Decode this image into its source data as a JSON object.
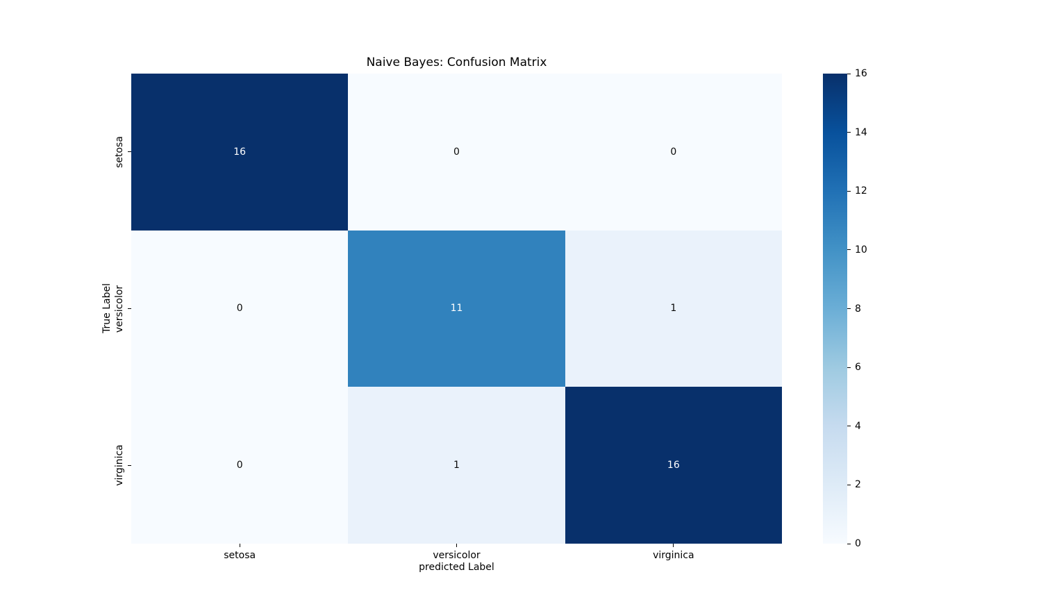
{
  "figure": {
    "background": "#ffffff"
  },
  "chart_data": {
    "type": "heatmap",
    "title": "Naive Bayes: Confusion Matrix",
    "xlabel": "predicted Label",
    "ylabel": "True Label",
    "x_categories": [
      "setosa",
      "versicolor",
      "virginica"
    ],
    "y_categories": [
      "setosa",
      "versicolor",
      "virginica"
    ],
    "matrix": [
      [
        16,
        0,
        0
      ],
      [
        0,
        11,
        1
      ],
      [
        0,
        1,
        16
      ]
    ],
    "vmin": 0,
    "vmax": 16,
    "colormap": "Blues",
    "grid": false,
    "legend_position": "right-colorbar",
    "colorbar_ticks": [
      0,
      2,
      4,
      6,
      8,
      10,
      12,
      14,
      16
    ],
    "cell_colors": [
      [
        "#08306b",
        "#f7fbff",
        "#f7fbff"
      ],
      [
        "#f7fbff",
        "#3182bd",
        "#eaf2fb"
      ],
      [
        "#f7fbff",
        "#eaf2fb",
        "#08306b"
      ]
    ],
    "cell_text_colors": [
      [
        "#ffffff",
        "#0a0a0a",
        "#0a0a0a"
      ],
      [
        "#0a0a0a",
        "#ffffff",
        "#0a0a0a"
      ],
      [
        "#0a0a0a",
        "#0a0a0a",
        "#ffffff"
      ]
    ],
    "colorbar_gradient_stops": [
      "#08306b",
      "#08519c",
      "#2171b5",
      "#4292c6",
      "#6baed6",
      "#9ecae1",
      "#c6dbef",
      "#deebf7",
      "#f7fbff"
    ],
    "axis_text_color": "#000000"
  }
}
